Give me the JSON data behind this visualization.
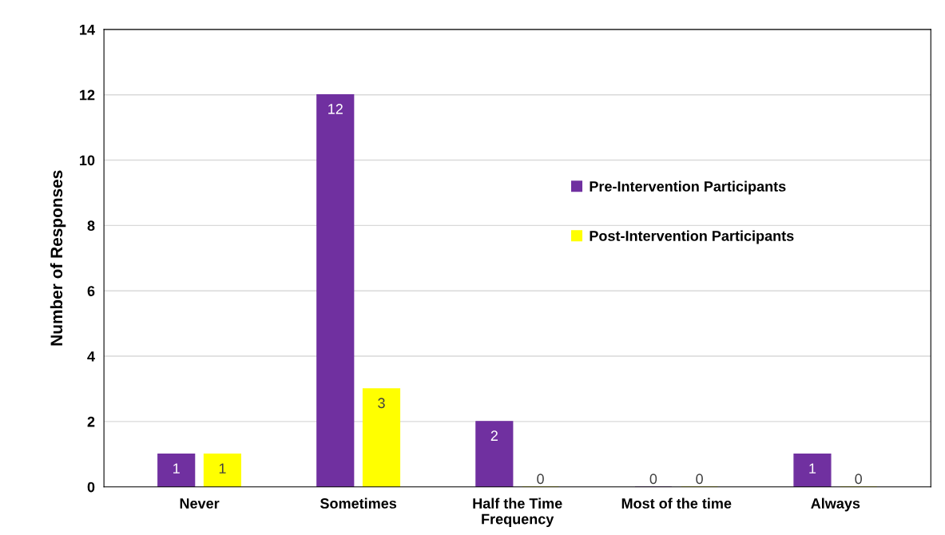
{
  "chart_data": {
    "type": "bar",
    "xlabel": "Frequency",
    "ylabel": "Number of Responses",
    "categories": [
      "Never",
      "Sometimes",
      "Half the Time",
      "Most of the time",
      "Always"
    ],
    "series": [
      {
        "name": "Pre-Intervention Participants",
        "color": "#7030a0",
        "values": [
          1,
          12,
          2,
          0,
          1
        ]
      },
      {
        "name": "Post-Intervention Participants",
        "color": "#ffff00",
        "values": [
          1,
          3,
          0,
          0,
          0
        ]
      }
    ],
    "ylim": [
      0,
      14
    ],
    "yticks": [
      0,
      2,
      4,
      6,
      8,
      10,
      12,
      14
    ],
    "grid": "y",
    "legend": "right",
    "data_labels": true
  }
}
